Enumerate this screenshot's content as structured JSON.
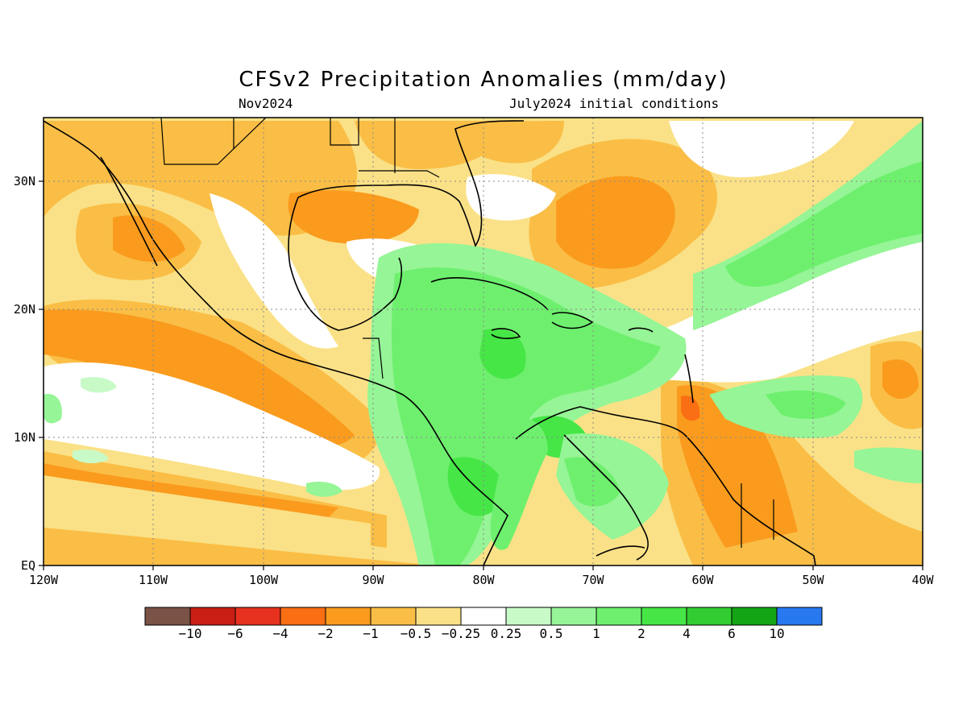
{
  "title": "CFSv2 Precipitation Anomalies (mm/day)",
  "subtitle_left": "Nov2024",
  "subtitle_right": "July2024 initial conditions",
  "map": {
    "lon_range": [
      -120,
      -40
    ],
    "lat_range": [
      0,
      35
    ],
    "x_ticks": [
      "120W",
      "110W",
      "100W",
      "90W",
      "80W",
      "70W",
      "60W",
      "50W",
      "40W"
    ],
    "y_ticks": [
      "EQ",
      "10N",
      "20N",
      "30N"
    ]
  },
  "colorbar": {
    "colors": [
      "#7a5246",
      "#c81e14",
      "#e6321e",
      "#fa6e14",
      "#fa9b1e",
      "#fabe46",
      "#fae187",
      "#ffffff",
      "#c8fac8",
      "#96f596",
      "#6ef06e",
      "#46e646",
      "#32cd32",
      "#14a514",
      "#2878f0"
    ],
    "labels": [
      "-10",
      "-6",
      "-4",
      "-2",
      "-1",
      "-0.5",
      "-0.25",
      "0.25",
      "0.5",
      "1",
      "2",
      "4",
      "6",
      "10"
    ]
  }
}
